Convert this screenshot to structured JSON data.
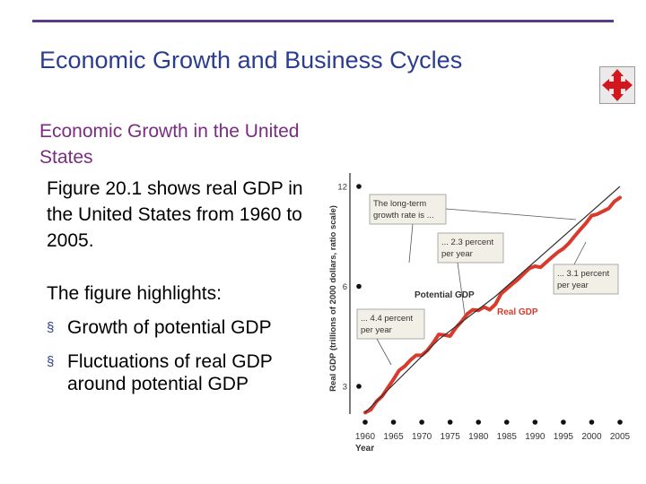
{
  "slide": {
    "title": "Economic Growth and Business Cycles",
    "subheading": "Economic Growth in the United States",
    "paragraph": "Figure 20.1 shows real GDP in the United States from 1960 to 2005.",
    "highlights_intro": "The figure highlights:",
    "bullets": [
      "Growth of potential GDP",
      "Fluctuations of real GDP around potential GDP"
    ]
  },
  "colors": {
    "title": "#2b3d8f",
    "subheading": "#7a2c82",
    "rule": "#5b3a8a",
    "real_gdp": "#d93a2b",
    "potential_gdp": "#333333",
    "callout_bg": "#f2efe6"
  },
  "icons": {
    "nav": "four-way-arrows-icon"
  },
  "chart_data": {
    "type": "line",
    "title": "",
    "xlabel": "Year",
    "ylabel": "Real GDP (trillions of 2000 dollars, ratio scale)",
    "yscale": "log",
    "ylim": [
      2.5,
      12.5
    ],
    "xlim": [
      1960,
      2005
    ],
    "xticks": [
      1960,
      1965,
      1970,
      1975,
      1980,
      1985,
      1990,
      1995,
      2000,
      2005
    ],
    "xtick_labels": [
      "1960",
      "1965",
      "1970",
      "1975",
      "1980",
      "1985",
      "1990",
      "1995",
      "2000",
      "2005"
    ],
    "yticks": [
      3,
      6,
      12
    ],
    "ytick_labels": [
      "3",
      "6",
      "12"
    ],
    "grid": false,
    "series": [
      {
        "name": "Real GDP",
        "x": [
          1960,
          1961,
          1962,
          1963,
          1964,
          1965,
          1966,
          1967,
          1968,
          1969,
          1970,
          1971,
          1972,
          1973,
          1974,
          1975,
          1976,
          1977,
          1978,
          1979,
          1980,
          1981,
          1982,
          1983,
          1984,
          1985,
          1986,
          1987,
          1988,
          1989,
          1990,
          1991,
          1992,
          1993,
          1994,
          1995,
          1996,
          1997,
          1998,
          1999,
          2000,
          2001,
          2002,
          2003,
          2004,
          2005
        ],
        "y": [
          2.5,
          2.55,
          2.7,
          2.8,
          2.97,
          3.15,
          3.35,
          3.45,
          3.6,
          3.72,
          3.72,
          3.85,
          4.05,
          4.3,
          4.28,
          4.25,
          4.5,
          4.7,
          4.95,
          5.1,
          5.08,
          5.2,
          5.1,
          5.3,
          5.7,
          5.9,
          6.1,
          6.3,
          6.55,
          6.8,
          6.9,
          6.85,
          7.1,
          7.35,
          7.6,
          7.8,
          8.1,
          8.5,
          8.9,
          9.3,
          9.8,
          9.9,
          10.1,
          10.3,
          10.8,
          11.1
        ]
      },
      {
        "name": "Potential GDP",
        "x": [
          1960,
          1973,
          1983,
          2005
        ],
        "y": [
          2.5,
          4.15,
          5.6,
          12.0
        ]
      }
    ],
    "annotations": [
      {
        "text": "The long-term growth rate is ..."
      },
      {
        "text": "... 2.3 percent per year"
      },
      {
        "text": "... 3.1 percent per year"
      },
      {
        "text": "... 4.4 percent per year"
      }
    ]
  }
}
